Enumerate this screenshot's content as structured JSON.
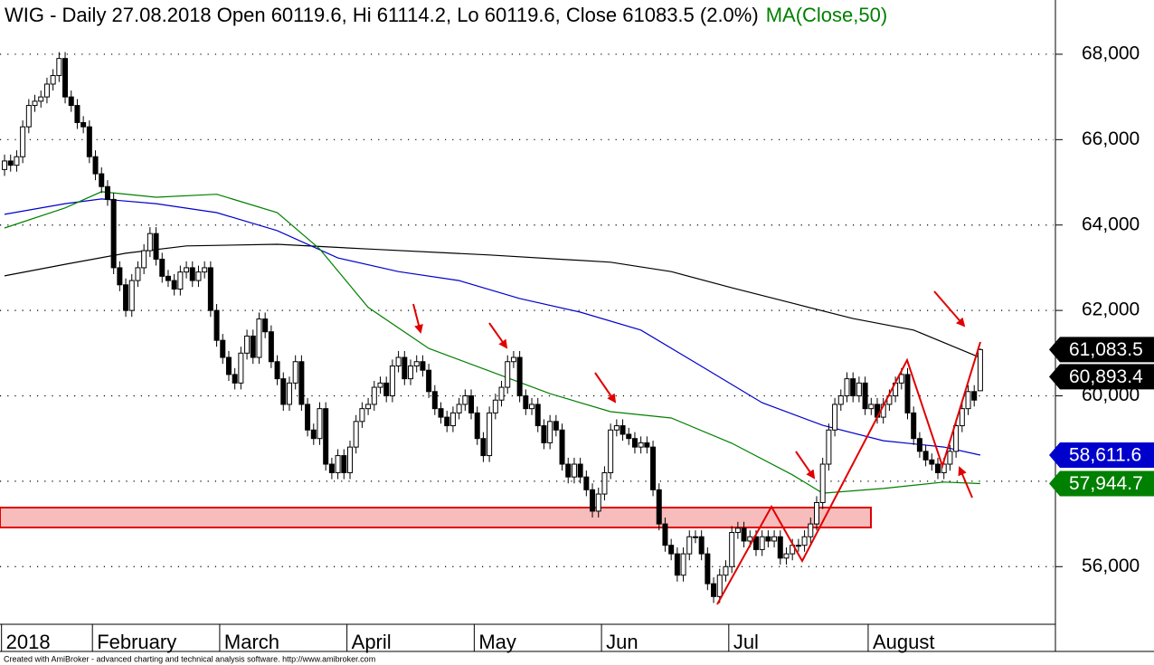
{
  "chart_data": {
    "type": "candlestick",
    "title": "WIG - Daily 27.08.2018 Open 60119.6, Hi 61114.2, Lo 60119.6, Close 61083.5 (2.0%)",
    "footer": "Created with AmiBroker - advanced charting and technical analysis software. http://www.amibroker.com",
    "color": "#000000",
    "close_label": "61,083.5",
    "xlim": [
      -0.75,
      173.1
    ],
    "xticks": [
      {
        "value": -0.5,
        "label": "2018"
      },
      {
        "value": 14.5,
        "label": "February"
      },
      {
        "value": 35.5,
        "label": "March"
      },
      {
        "value": 56.5,
        "label": "April"
      },
      {
        "value": 77.5,
        "label": "May"
      },
      {
        "value": 98.5,
        "label": "Jun"
      },
      {
        "value": 119.5,
        "label": "Jul"
      },
      {
        "value": 142.5,
        "label": "August"
      }
    ],
    "ylim": [
      54650,
      69270
    ],
    "yticks": [
      {
        "value": 56000,
        "label": "56,000"
      },
      {
        "value": 58000,
        "label": "58,000"
      },
      {
        "value": 60000,
        "label": "60,000"
      },
      {
        "value": 62000,
        "label": "62,000"
      },
      {
        "value": 64000,
        "label": "64,000"
      },
      {
        "value": 66000,
        "label": "66,000"
      },
      {
        "value": 68000,
        "label": "68,000"
      }
    ],
    "grid": true,
    "open": [
      65300,
      65500,
      65400,
      65600,
      66300,
      66800,
      66900,
      67000,
      67300,
      67500,
      67900,
      67000,
      66800,
      66400,
      66300,
      65600,
      65200,
      64900,
      64600,
      63000,
      62600,
      62000,
      62700,
      63000,
      63400,
      63800,
      63200,
      62800,
      62700,
      62500,
      62900,
      63000,
      62700,
      62900,
      63000,
      62000,
      61300,
      60900,
      60500,
      60300,
      61000,
      61400,
      60900,
      61800,
      61500,
      60800,
      60400,
      59800,
      60300,
      60800,
      59800,
      59200,
      59000,
      59700,
      58400,
      58200,
      58600,
      58200,
      58800,
      59400,
      59700,
      59800,
      60200,
      60300,
      60000,
      60700,
      60900,
      60400,
      60700,
      60800,
      60600,
      60100,
      59700,
      59500,
      59300,
      59600,
      59800,
      60000,
      59600,
      59000,
      58600,
      59600,
      59900,
      60200,
      60800,
      60900,
      60000,
      59700,
      59800,
      59300,
      58900,
      59400,
      59200,
      58400,
      58100,
      58400,
      58100,
      57800,
      57300,
      57700,
      58200,
      59200,
      59300,
      59100,
      59000,
      58800,
      58900,
      58800,
      57800,
      57000,
      56500,
      56300,
      55800,
      56300,
      56700,
      56700,
      56300,
      55600,
      55300,
      55800,
      56000,
      56800,
      56900,
      56600,
      56700,
      56400,
      56700,
      56600,
      56700,
      56200,
      56300,
      56500,
      56500,
      56700,
      57000,
      57500,
      58400,
      59200,
      59800,
      60000,
      60400,
      60000,
      60300,
      59700,
      59800,
      59500,
      59800,
      60000,
      60300,
      60500,
      59600,
      59000,
      58700,
      58500,
      58400,
      58200,
      58400,
      58700,
      59300,
      59700,
      60100,
      60119.6
    ],
    "high": [
      65650,
      65650,
      65750,
      66450,
      66950,
      67050,
      67150,
      67450,
      67650,
      68050,
      68050,
      67150,
      66950,
      66550,
      66450,
      65750,
      65350,
      65050,
      64750,
      63150,
      62750,
      62850,
      63150,
      63550,
      63950,
      63950,
      63350,
      62950,
      62850,
      63050,
      63150,
      63150,
      63050,
      63150,
      63150,
      62150,
      61450,
      61050,
      60650,
      61150,
      61550,
      61550,
      61950,
      61950,
      61650,
      60950,
      60550,
      60450,
      60950,
      60950,
      59950,
      59350,
      59850,
      59850,
      58550,
      58750,
      58750,
      58950,
      59550,
      59850,
      59950,
      60350,
      60450,
      60450,
      60850,
      61050,
      61050,
      60850,
      60950,
      60950,
      60750,
      60250,
      59850,
      59650,
      59750,
      59950,
      60150,
      60150,
      59750,
      59150,
      59750,
      60050,
      60350,
      60950,
      61050,
      61050,
      60150,
      59950,
      59950,
      59450,
      59550,
      59550,
      59350,
      58550,
      58550,
      58550,
      58250,
      57950,
      57850,
      58350,
      59350,
      59450,
      59450,
      59250,
      59150,
      59050,
      59050,
      58950,
      57950,
      57150,
      56650,
      56450,
      56450,
      56850,
      56850,
      56850,
      56450,
      55750,
      55950,
      56150,
      56950,
      57050,
      57050,
      56850,
      56850,
      56850,
      56850,
      56850,
      56850,
      56450,
      56650,
      56650,
      56850,
      57150,
      57650,
      58550,
      59350,
      59950,
      60150,
      60550,
      60550,
      60450,
      60450,
      59950,
      59950,
      59950,
      60150,
      60450,
      60650,
      60650,
      59750,
      59150,
      58850,
      58650,
      58550,
      58550,
      58850,
      59450,
      59850,
      60250,
      60250,
      61114.2
    ],
    "low": [
      65150,
      65250,
      65250,
      65450,
      66150,
      66650,
      66750,
      66850,
      67150,
      67350,
      66850,
      66650,
      66250,
      66150,
      65450,
      65050,
      64750,
      64450,
      62850,
      62450,
      61850,
      61850,
      62550,
      62850,
      63250,
      63050,
      62650,
      62550,
      62350,
      62350,
      62750,
      62550,
      62550,
      62750,
      61850,
      61150,
      60750,
      60350,
      60150,
      60150,
      60850,
      60750,
      60750,
      61350,
      60650,
      60250,
      59650,
      59650,
      60150,
      59650,
      59050,
      58850,
      58850,
      58250,
      58050,
      58050,
      58050,
      58050,
      58650,
      59250,
      59550,
      59650,
      60050,
      59850,
      59850,
      60550,
      60250,
      60250,
      60550,
      60450,
      59950,
      59550,
      59350,
      59150,
      59150,
      59450,
      59650,
      59450,
      58850,
      58450,
      58450,
      59450,
      59750,
      60050,
      60650,
      59850,
      59550,
      59550,
      59150,
      58750,
      58750,
      59050,
      58250,
      57950,
      57950,
      57950,
      57650,
      57150,
      57150,
      57550,
      58050,
      59050,
      58950,
      58850,
      58650,
      58650,
      58650,
      57650,
      56850,
      56350,
      56150,
      55650,
      55650,
      56150,
      56550,
      56150,
      55450,
      55150,
      55150,
      55650,
      55850,
      56650,
      56450,
      56450,
      56250,
      56250,
      56450,
      56450,
      56050,
      56050,
      56150,
      56350,
      56350,
      56550,
      56850,
      57350,
      58250,
      59050,
      59650,
      59850,
      59850,
      59850,
      59550,
      59550,
      59350,
      59350,
      59650,
      59850,
      60150,
      59450,
      58850,
      58550,
      58350,
      58250,
      58050,
      58050,
      58250,
      58550,
      59150,
      59550,
      59750,
      60119.6
    ],
    "close": [
      65500,
      65400,
      65600,
      66300,
      66800,
      66900,
      67000,
      67300,
      67500,
      67900,
      67000,
      66800,
      66400,
      66300,
      65600,
      65200,
      64900,
      64600,
      63000,
      62600,
      62000,
      62700,
      63000,
      63400,
      63800,
      63200,
      62800,
      62700,
      62500,
      62900,
      63000,
      62700,
      62900,
      63000,
      62000,
      61300,
      60900,
      60500,
      60300,
      61000,
      61400,
      60900,
      61800,
      61500,
      60800,
      60400,
      59800,
      60300,
      60800,
      59800,
      59200,
      59000,
      59700,
      58400,
      58200,
      58600,
      58200,
      58800,
      59400,
      59700,
      59800,
      60200,
      60300,
      60000,
      60700,
      60900,
      60400,
      60700,
      60800,
      60600,
      60100,
      59700,
      59500,
      59300,
      59600,
      59800,
      60000,
      59600,
      59000,
      58600,
      59600,
      59900,
      60200,
      60800,
      60900,
      60000,
      59700,
      59800,
      59300,
      58900,
      59400,
      59200,
      58400,
      58100,
      58400,
      58100,
      57800,
      57300,
      57700,
      58200,
      59200,
      59300,
      59100,
      59000,
      58800,
      58900,
      58800,
      57800,
      57000,
      56500,
      56300,
      55800,
      56300,
      56700,
      56700,
      56300,
      55600,
      55300,
      55800,
      56000,
      56800,
      56900,
      56600,
      56700,
      56400,
      56700,
      56600,
      56700,
      56200,
      56300,
      56500,
      56500,
      56700,
      57000,
      57500,
      58400,
      59200,
      59800,
      60000,
      60400,
      60000,
      60300,
      59700,
      59800,
      59500,
      59800,
      60000,
      60300,
      60500,
      59600,
      59000,
      58700,
      58500,
      58400,
      58200,
      58400,
      58700,
      59300,
      59700,
      60100,
      59900,
      61083.5
    ],
    "lines": [
      {
        "color": "#000000",
        "last_label": "60,893.4",
        "x": [
          0,
          10,
          20,
          30,
          45,
          60,
          80,
          100,
          110,
          120,
          130,
          140,
          150,
          161
        ],
        "values": [
          62810,
          63080,
          63340,
          63510,
          63550,
          63440,
          63300,
          63130,
          62910,
          62530,
          62170,
          61810,
          61540,
          60893.4
        ]
      },
      {
        "color": "#0000cc",
        "last_label": "58,611.6",
        "x": [
          0,
          10,
          16,
          25,
          35,
          45,
          55,
          65,
          75,
          85,
          95,
          105,
          115,
          125,
          135,
          145,
          155,
          161
        ],
        "values": [
          64250,
          64500,
          64610,
          64500,
          64290,
          63870,
          63230,
          62910,
          62700,
          62280,
          61960,
          61540,
          60690,
          59840,
          59310,
          58950,
          58800,
          58611.6
        ]
      },
      {
        "name": "MA(Close,50)",
        "color": "#008000",
        "last_label": "57,944.7",
        "x": [
          0,
          10,
          16,
          25,
          35,
          45,
          52,
          60,
          70,
          80,
          90,
          100,
          110,
          120,
          130,
          135,
          145,
          155,
          161
        ],
        "values": [
          63930,
          64400,
          64780,
          64650,
          64720,
          64290,
          63440,
          62070,
          61110,
          60580,
          60050,
          59630,
          59480,
          58890,
          58150,
          57720,
          57830,
          57980,
          57944.7
        ]
      }
    ]
  }
}
